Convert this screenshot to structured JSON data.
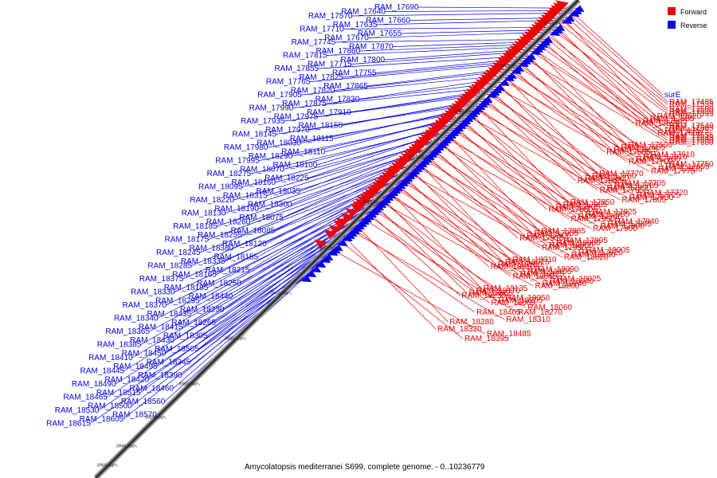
{
  "caption": "Amycolatopsis mediterranei S699, complete genome. - 0..10236779",
  "legend": [
    {
      "label": "Forward",
      "color": "#ee0000"
    },
    {
      "label": "Reverse",
      "color": "#0000ee"
    }
  ],
  "colors": {
    "forward": "#ee0000",
    "reverse": "#0000ee",
    "backbone": "#333333"
  },
  "ticks": [
    {
      "label": "3740 kbp",
      "pos": 0.04
    },
    {
      "label": "3760 kbp",
      "pos": 0.13
    },
    {
      "label": "3780 kbp",
      "pos": 0.225
    },
    {
      "label": "3800 kbp",
      "pos": 0.32
    },
    {
      "label": "3820 kbp",
      "pos": 0.415
    },
    {
      "label": "3840 kbp",
      "pos": 0.51
    },
    {
      "label": "3860 kbp",
      "pos": 0.605
    },
    {
      "label": "3880 kbp",
      "pos": 0.7
    },
    {
      "label": "3900 kbp",
      "pos": 0.795
    },
    {
      "label": "3920 kbp",
      "pos": 0.865
    },
    {
      "label": "3940 kbp",
      "pos": 0.925
    },
    {
      "label": "3960 kbp",
      "pos": 0.965
    }
  ],
  "reverse_genes": [
    {
      "name": "RAM_17690",
      "pos": 0.01
    },
    {
      "name": "RAM_17640",
      "pos": 0.015
    },
    {
      "name": "RAM_17570",
      "pos": 0.02
    },
    {
      "name": "RAM_17660",
      "pos": 0.03
    },
    {
      "name": "RAM_17635",
      "pos": 0.035
    },
    {
      "name": "RAM_17710",
      "pos": 0.05
    },
    {
      "name": "RAM_17655",
      "pos": 0.055
    },
    {
      "name": "RAM_17670",
      "pos": 0.06
    },
    {
      "name": "RAM_17745",
      "pos": 0.075
    },
    {
      "name": "RAM_17870",
      "pos": 0.08
    },
    {
      "name": "RAM_17860",
      "pos": 0.085
    },
    {
      "name": "RAM_17815",
      "pos": 0.09
    },
    {
      "name": "RAM_17800",
      "pos": 0.095
    },
    {
      "name": "RAM_17715",
      "pos": 0.1
    },
    {
      "name": "RAM_17855",
      "pos": 0.11
    },
    {
      "name": "RAM_17755",
      "pos": 0.115
    },
    {
      "name": "RAM_17825",
      "pos": 0.12
    },
    {
      "name": "RAM_17765",
      "pos": 0.125
    },
    {
      "name": "RAM_17865",
      "pos": 0.135
    },
    {
      "name": "RAM_17820",
      "pos": 0.14
    },
    {
      "name": "RAM_17905",
      "pos": 0.15
    },
    {
      "name": "RAM_17830",
      "pos": 0.155
    },
    {
      "name": "RAM_17875",
      "pos": 0.165
    },
    {
      "name": "RAM_17990",
      "pos": 0.175
    },
    {
      "name": "RAM_17910",
      "pos": 0.18
    },
    {
      "name": "RAM_17975",
      "pos": 0.185
    },
    {
      "name": "RAM_17935",
      "pos": 0.19
    },
    {
      "name": "RAM_18150",
      "pos": 0.2
    },
    {
      "name": "RAM_17970",
      "pos": 0.205
    },
    {
      "name": "RAM_18145",
      "pos": 0.21
    },
    {
      "name": "RAM_18115",
      "pos": 0.215
    },
    {
      "name": "RAM_18030",
      "pos": 0.22
    },
    {
      "name": "RAM_17980",
      "pos": 0.225
    },
    {
      "name": "RAM_18110",
      "pos": 0.23
    },
    {
      "name": "RAM_18290",
      "pos": 0.235
    },
    {
      "name": "RAM_17995",
      "pos": 0.24
    },
    {
      "name": "RAM_18100",
      "pos": 0.245
    },
    {
      "name": "RAM_18070",
      "pos": 0.25
    },
    {
      "name": "RAM_18275",
      "pos": 0.255
    },
    {
      "name": "RAM_18225",
      "pos": 0.26
    },
    {
      "name": "RAM_18160",
      "pos": 0.265
    },
    {
      "name": "RAM_18095",
      "pos": 0.27
    },
    {
      "name": "RAM_18035",
      "pos": 0.275
    },
    {
      "name": "RAM_18315",
      "pos": 0.28
    },
    {
      "name": "RAM_18220",
      "pos": 0.285
    },
    {
      "name": "RAM_18300",
      "pos": 0.29
    },
    {
      "name": "RAM_18190",
      "pos": 0.295
    },
    {
      "name": "RAM_18130",
      "pos": 0.3
    },
    {
      "name": "RAM_18075",
      "pos": 0.305
    },
    {
      "name": "RAM_18260",
      "pos": 0.31
    },
    {
      "name": "RAM_18185",
      "pos": 0.315
    },
    {
      "name": "RAM_18085",
      "pos": 0.32
    },
    {
      "name": "RAM_18255",
      "pos": 0.325
    },
    {
      "name": "RAM_18175",
      "pos": 0.33
    },
    {
      "name": "RAM_18120",
      "pos": 0.335
    },
    {
      "name": "RAM_18380",
      "pos": 0.34
    },
    {
      "name": "RAM_18245",
      "pos": 0.345
    },
    {
      "name": "RAM_18155",
      "pos": 0.35
    },
    {
      "name": "RAM_18335",
      "pos": 0.355
    },
    {
      "name": "RAM_18285",
      "pos": 0.36
    },
    {
      "name": "RAM_18215",
      "pos": 0.365
    },
    {
      "name": "RAM_18165",
      "pos": 0.37
    },
    {
      "name": "RAM_18375",
      "pos": 0.375
    },
    {
      "name": "RAM_18250",
      "pos": 0.38
    },
    {
      "name": "RAM_18195",
      "pos": 0.385
    },
    {
      "name": "RAM_18330",
      "pos": 0.39
    },
    {
      "name": "RAM_18440",
      "pos": 0.395
    },
    {
      "name": "RAM_18295",
      "pos": 0.4
    },
    {
      "name": "RAM_18370",
      "pos": 0.405
    },
    {
      "name": "RAM_18230",
      "pos": 0.41
    },
    {
      "name": "RAM_18435",
      "pos": 0.415
    },
    {
      "name": "RAM_18340",
      "pos": 0.42
    },
    {
      "name": "RAM_18265",
      "pos": 0.425
    },
    {
      "name": "RAM_18415",
      "pos": 0.43
    },
    {
      "name": "RAM_18365",
      "pos": 0.435
    },
    {
      "name": "RAM_18305",
      "pos": 0.44
    },
    {
      "name": "RAM_18430",
      "pos": 0.445
    },
    {
      "name": "RAM_18385",
      "pos": 0.45
    },
    {
      "name": "RAM_18505",
      "pos": 0.455
    },
    {
      "name": "RAM_18450",
      "pos": 0.46
    },
    {
      "name": "RAM_18410",
      "pos": 0.465
    },
    {
      "name": "RAM_18345",
      "pos": 0.47
    },
    {
      "name": "RAM_18495",
      "pos": 0.475
    },
    {
      "name": "RAM_18445",
      "pos": 0.48
    },
    {
      "name": "RAM_18390",
      "pos": 0.485
    },
    {
      "name": "RAM_18420",
      "pos": 0.49
    },
    {
      "name": "RAM_18490",
      "pos": 0.5
    },
    {
      "name": "RAM_18460",
      "pos": 0.51
    },
    {
      "name": "RAM_18515",
      "pos": 0.515
    },
    {
      "name": "RAM_18465",
      "pos": 0.52
    },
    {
      "name": "RAM_18560",
      "pos": 0.53
    },
    {
      "name": "RAM_18500",
      "pos": 0.535
    },
    {
      "name": "RAM_18530",
      "pos": 0.545
    },
    {
      "name": "RAM_18570",
      "pos": 0.555
    },
    {
      "name": "RAM_18605",
      "pos": 0.565
    },
    {
      "name": "RAM_18615",
      "pos": 0.575
    }
  ],
  "forward_genes": [
    {
      "name": "surE",
      "pos": 0.02
    },
    {
      "name": "RAM_17485",
      "pos": 0.025
    },
    {
      "name": "RAM_17500",
      "pos": 0.03
    },
    {
      "name": "RAM_17520",
      "pos": 0.035
    },
    {
      "name": "RAM_17535",
      "pos": 0.04
    },
    {
      "name": "RAM_17630",
      "pos": 0.045
    },
    {
      "name": "RAM_17585",
      "pos": 0.05
    },
    {
      "name": "RAM_17540",
      "pos": 0.055
    },
    {
      "name": "RAM_17595",
      "pos": 0.06
    },
    {
      "name": "RAM_17545",
      "pos": 0.065
    },
    {
      "name": "RAM_17605",
      "pos": 0.07
    },
    {
      "name": "RAM_17555",
      "pos": 0.075
    },
    {
      "name": "RAM_17620",
      "pos": 0.08
    },
    {
      "name": "RAM_17575",
      "pos": 0.085
    },
    {
      "name": "RAM_17645",
      "pos": 0.09
    },
    {
      "name": "RAM_17590",
      "pos": 0.095
    },
    {
      "name": "RAM_17650",
      "pos": 0.1
    },
    {
      "name": "RAM_17600",
      "pos": 0.105
    },
    {
      "name": "RAM_17665",
      "pos": 0.11
    },
    {
      "name": "RAM_17610",
      "pos": 0.115
    },
    {
      "name": "RAM_17680",
      "pos": 0.12
    },
    {
      "name": "RAM_17625",
      "pos": 0.125
    },
    {
      "name": "RAM_17810",
      "pos": 0.13
    },
    {
      "name": "RAM_17750",
      "pos": 0.135
    },
    {
      "name": "RAM_17685",
      "pos": 0.14
    },
    {
      "name": "RAM_17760",
      "pos": 0.145
    },
    {
      "name": "RAM_17695",
      "pos": 0.15
    },
    {
      "name": "RAM_17770",
      "pos": 0.155
    },
    {
      "name": "RAM_17700",
      "pos": 0.16
    },
    {
      "name": "RAM_17835",
      "pos": 0.165
    },
    {
      "name": "RAM_17780",
      "pos": 0.17
    },
    {
      "name": "RAM_17705",
      "pos": 0.175
    },
    {
      "name": "RAM_17775",
      "pos": 0.18
    },
    {
      "name": "RAM_17840",
      "pos": 0.185
    },
    {
      "name": "RAM_17785",
      "pos": 0.19
    },
    {
      "name": "RAM_17720",
      "pos": 0.195
    },
    {
      "name": "RAM_17845",
      "pos": 0.2
    },
    {
      "name": "RAM_17790",
      "pos": 0.205
    },
    {
      "name": "RAM_17725",
      "pos": 0.21
    },
    {
      "name": "RAM_17850",
      "pos": 0.215
    },
    {
      "name": "RAM_17795",
      "pos": 0.22
    },
    {
      "name": "RAM_17730",
      "pos": 0.225
    },
    {
      "name": "RAM_17965",
      "pos": 0.23
    },
    {
      "name": "RAM_17925",
      "pos": 0.235
    },
    {
      "name": "RAM_17805",
      "pos": 0.24
    },
    {
      "name": "RAM_17735",
      "pos": 0.245
    },
    {
      "name": "RAM_17985",
      "pos": 0.25
    },
    {
      "name": "RAM_17940",
      "pos": 0.255
    },
    {
      "name": "RAM_17880",
      "pos": 0.26
    },
    {
      "name": "RAM_17740",
      "pos": 0.265
    },
    {
      "name": "RAM_17945",
      "pos": 0.27
    },
    {
      "name": "RAM_17885",
      "pos": 0.275
    },
    {
      "name": "RAM_17950",
      "pos": 0.28
    },
    {
      "name": "RAM_17890",
      "pos": 0.285
    },
    {
      "name": "RAM_17955",
      "pos": 0.29
    },
    {
      "name": "RAM_17895",
      "pos": 0.295
    },
    {
      "name": "RAM_17960",
      "pos": 0.3
    },
    {
      "name": "RAM_17900",
      "pos": 0.305
    },
    {
      "name": "RAM_18080",
      "pos": 0.31
    },
    {
      "name": "RAM_18005",
      "pos": 0.315
    },
    {
      "name": "RAM_17915",
      "pos": 0.32
    },
    {
      "name": "RAM_18000",
      "pos": 0.325
    },
    {
      "name": "RAM_17920",
      "pos": 0.33
    },
    {
      "name": "RAM_18010",
      "pos": 0.335
    },
    {
      "name": "RAM_17930",
      "pos": 0.34
    },
    {
      "name": "RAM_18140",
      "pos": 0.345
    },
    {
      "name": "RAM_18015",
      "pos": 0.35
    },
    {
      "name": "RAM_18090",
      "pos": 0.355
    },
    {
      "name": "RAM_18020",
      "pos": 0.36
    },
    {
      "name": "RAM_18180",
      "pos": 0.365
    },
    {
      "name": "RAM_18105",
      "pos": 0.37
    },
    {
      "name": "RAM_18025",
      "pos": 0.375
    },
    {
      "name": "RAM_18210",
      "pos": 0.38
    },
    {
      "name": "RAM_18125",
      "pos": 0.385
    },
    {
      "name": "RAM_18040",
      "pos": 0.39
    },
    {
      "name": "RAM_18135",
      "pos": 0.395
    },
    {
      "name": "RAM_18045",
      "pos": 0.4
    },
    {
      "name": "RAM_18240",
      "pos": 0.405
    },
    {
      "name": "RAM_18170",
      "pos": 0.41
    },
    {
      "name": "RAM_18050",
      "pos": 0.415
    },
    {
      "name": "RAM_18200",
      "pos": 0.42
    },
    {
      "name": "RAM_18055",
      "pos": 0.425
    },
    {
      "name": "RAM_18205",
      "pos": 0.43
    },
    {
      "name": "RAM_18060",
      "pos": 0.435
    },
    {
      "name": "RAM_18235",
      "pos": 0.44
    },
    {
      "name": "RAM_18065",
      "pos": 0.445
    },
    {
      "name": "RAM_18270",
      "pos": 0.455
    },
    {
      "name": "RAM_18280",
      "pos": 0.465
    },
    {
      "name": "RAM_18405",
      "pos": 0.475
    },
    {
      "name": "RAM_18310",
      "pos": 0.48
    },
    {
      "name": "RAM_18320",
      "pos": 0.49
    },
    {
      "name": "RAM_18395",
      "pos": 0.5
    },
    {
      "name": "RAM_18485",
      "pos": 0.52
    }
  ]
}
